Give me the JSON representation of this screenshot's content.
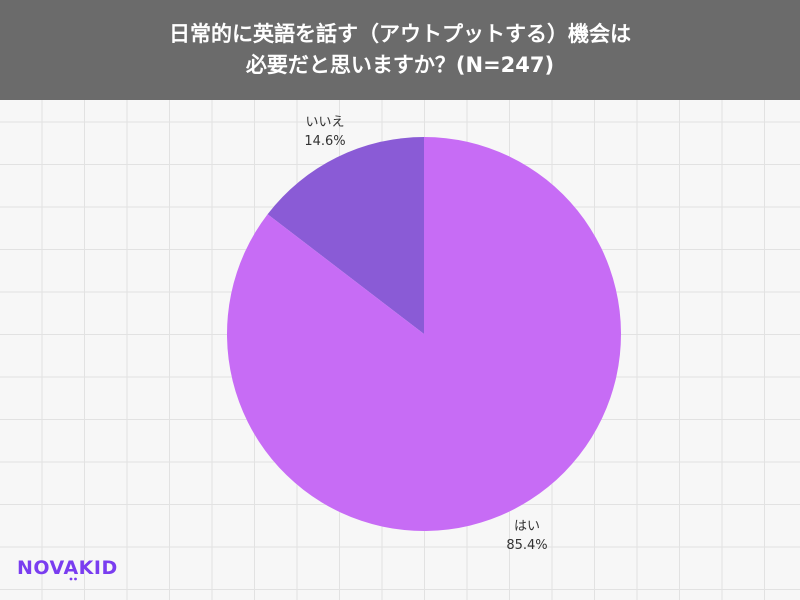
{
  "header": {
    "title_line1": "日常的に英語を話す（アウトプットする）機会は",
    "title_line2": "必要だと思いますか？(N=247)"
  },
  "chart_data": {
    "type": "pie",
    "title": "日常的に英語を話す（アウトプットする）機会は必要だと思いますか？(N=247)",
    "slices": [
      {
        "label": "いいえ",
        "value": 14.6,
        "display": "14.6%",
        "color": "#8a5bd6"
      },
      {
        "label": "はい",
        "value": 85.4,
        "display": "85.4%",
        "color": "#c76cf5"
      }
    ]
  },
  "logo": {
    "text": "NOVAKID",
    "color": "#7a3df0"
  }
}
